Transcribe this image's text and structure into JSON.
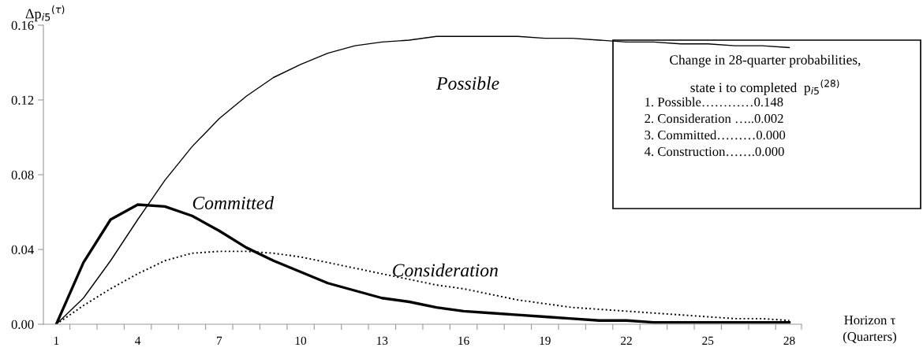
{
  "chart_data": {
    "type": "line",
    "categories": [
      "1",
      null,
      null,
      "4",
      null,
      null,
      "7",
      null,
      null,
      "10",
      null,
      null,
      "13",
      null,
      null,
      "16",
      null,
      null,
      "19",
      null,
      null,
      "22",
      null,
      null,
      "25",
      null,
      null,
      "28"
    ],
    "ylabel": "Δp$_{i5}$$^{(τ)}$",
    "xlabel": "Horizon τ\n(Quarters)",
    "ylim": [
      0,
      0.16
    ],
    "yticks": [
      {
        "value": 0,
        "label": "0.00"
      },
      {
        "value": 0.04,
        "label": "0.04"
      },
      {
        "value": 0.08,
        "label": "0.08"
      },
      {
        "value": 0.12,
        "label": "0.12"
      },
      {
        "value": 0.16,
        "label": "0.16"
      }
    ],
    "grid": false,
    "legend": false,
    "marker": "none",
    "series": [
      {
        "name": "Possible",
        "color": "#000000",
        "line_style": "solid",
        "values": [
          0,
          0.014,
          0.034,
          0.056,
          0.077,
          0.095,
          0.11,
          0.122,
          0.132,
          0.139,
          0.145,
          0.149,
          0.151,
          0.152,
          0.154,
          0.154,
          0.154,
          0.154,
          0.153,
          0.153,
          0.152,
          0.151,
          0.151,
          0.15,
          0.15,
          0.149,
          0.149,
          0.148
        ]
      },
      {
        "name": "Committed",
        "color": "#000000",
        "line_style": "solid",
        "values": [
          0,
          0.033,
          0.056,
          0.064,
          0.063,
          0.058,
          0.05,
          0.041,
          0.034,
          0.028,
          0.022,
          0.018,
          0.014,
          0.012,
          0.009,
          0.007,
          0.006,
          0.005,
          0.004,
          0.003,
          0.002,
          0.002,
          0.001,
          0.001,
          0.001,
          0.001,
          0.001,
          0.001
        ]
      },
      {
        "name": "Consideration",
        "color": "#000000",
        "line_style": "dotted",
        "values": [
          0,
          0.01,
          0.019,
          0.027,
          0.034,
          0.038,
          0.039,
          0.039,
          0.038,
          0.036,
          0.033,
          0.03,
          0.027,
          0.024,
          0.021,
          0.019,
          0.016,
          0.013,
          0.011,
          0.009,
          0.008,
          0.007,
          0.006,
          0.005,
          0.004,
          0.003,
          0.003,
          0.002
        ]
      }
    ],
    "annotations": [
      "Change in 28-quarter probabilities,",
      "state i to completed  p$_{i5}$$^{(28)}$",
      "1. Possible…………0.148",
      "2. Consideration …..0.002",
      "3. Committed………0.000",
      "4. Construction…….0.000"
    ]
  }
}
